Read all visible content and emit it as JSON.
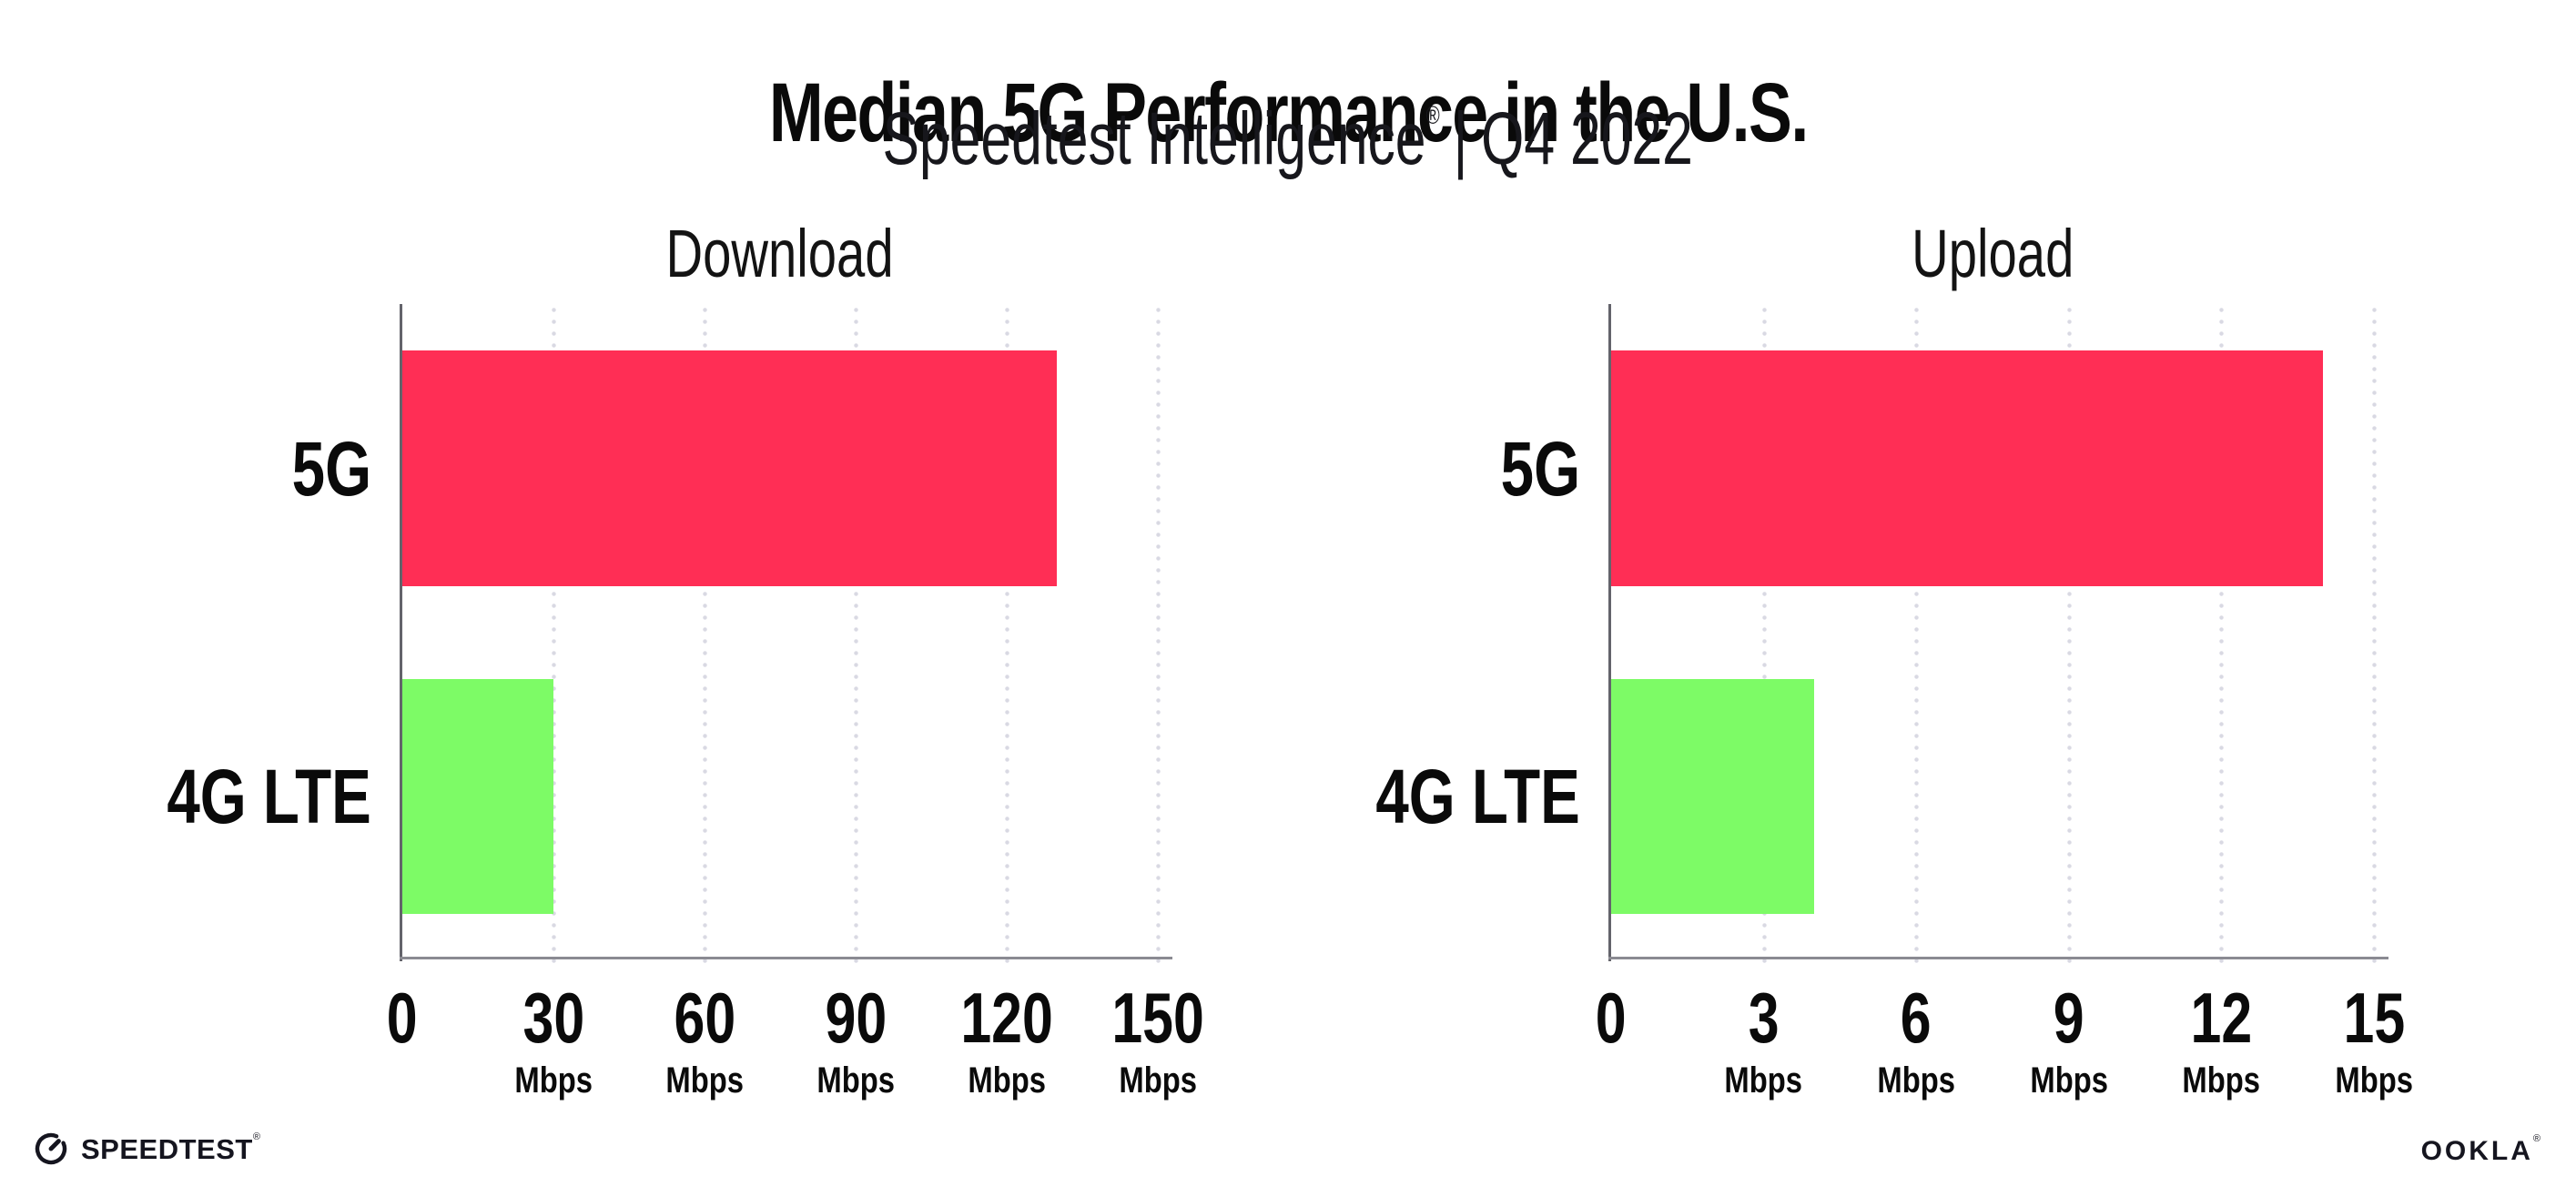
{
  "header": {
    "title": "Median 5G Performance in the U.S.",
    "subtitle": {
      "brand": "Speedtest Intelligence",
      "registered": "®",
      "separator": "|",
      "period": "Q4 2022"
    }
  },
  "chart_data": [
    {
      "type": "bar",
      "orientation": "horizontal",
      "title": "Download",
      "categories": [
        "5G",
        "4G LTE"
      ],
      "values": [
        130,
        30
      ],
      "value_unit": "Mbps",
      "xlim": [
        0,
        150
      ],
      "xticks": [
        0,
        30,
        60,
        90,
        120,
        150
      ],
      "xtick_unit_label": "Mbps",
      "bar_colors": [
        "#ff2e55",
        "#7dfb66"
      ],
      "grid": "dotted-vertical",
      "legend": "none"
    },
    {
      "type": "bar",
      "orientation": "horizontal",
      "title": "Upload",
      "categories": [
        "5G",
        "4G LTE"
      ],
      "values": [
        14,
        4
      ],
      "value_unit": "Mbps",
      "xlim": [
        0,
        15
      ],
      "xticks": [
        0,
        3,
        6,
        9,
        12,
        15
      ],
      "xtick_unit_label": "Mbps",
      "bar_colors": [
        "#ff2e55",
        "#7dfb66"
      ],
      "grid": "dotted-vertical",
      "legend": "none"
    }
  ],
  "footer": {
    "speedtest_logo_text": "SPEEDTEST",
    "speedtest_trademark": "®",
    "ookla_logo_text": "OOKLA",
    "ookla_trademark": "®"
  },
  "colors": {
    "bar_5g": "#ff2e55",
    "bar_4g_lte": "#7dfb66",
    "gridline": "#d9d9e3",
    "x_axis_line": "#8b8b92",
    "y_axis_line": "#63636b",
    "text": "#0a0a0a",
    "background": "#ffffff"
  }
}
